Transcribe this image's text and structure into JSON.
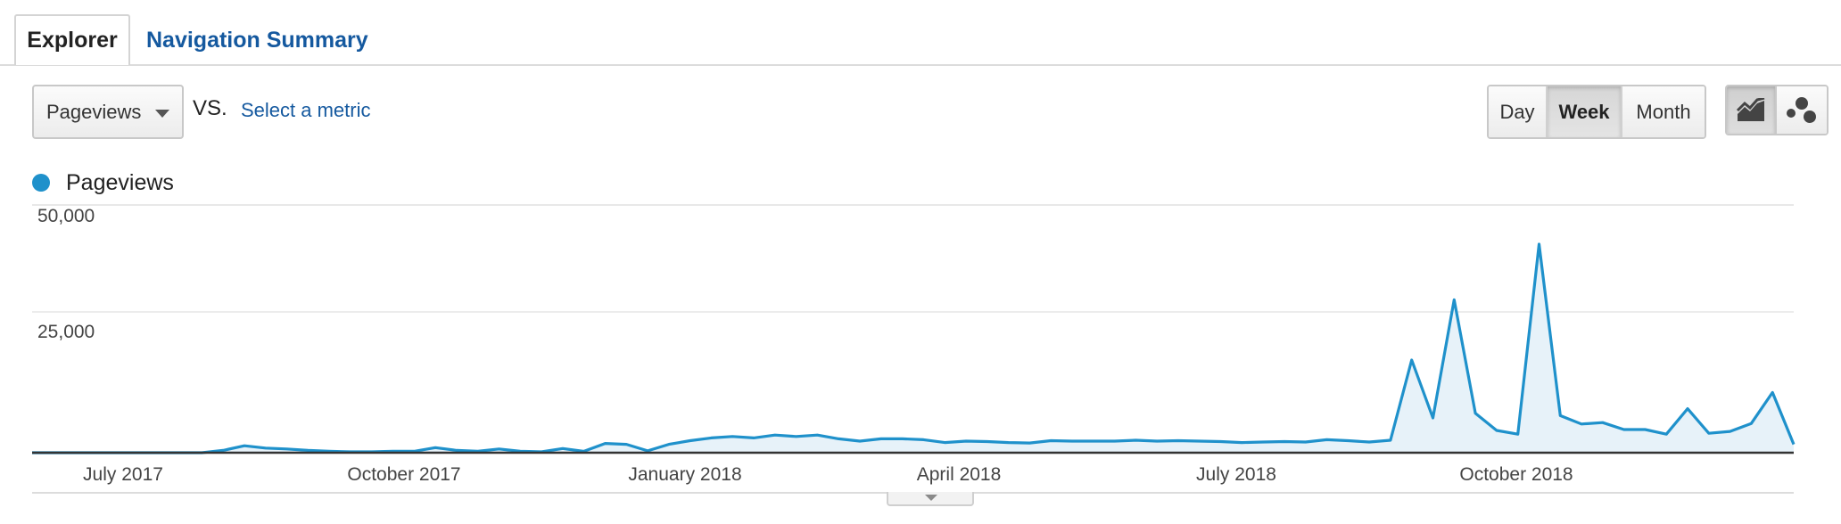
{
  "tabs": {
    "explorer": "Explorer",
    "navigation_summary": "Navigation Summary"
  },
  "controls": {
    "metric_selected": "Pageviews",
    "vs_label": "VS.",
    "select_metric": "Select a metric",
    "period": {
      "day": "Day",
      "week": "Week",
      "month": "Month",
      "selected": "Week"
    },
    "chart_type_selected": "line"
  },
  "legend": {
    "series_name": "Pageviews",
    "color": "#1f91cb"
  },
  "chart_data": {
    "type": "area",
    "title": "",
    "xlabel": "",
    "ylabel": "",
    "ylim": [
      0,
      50000
    ],
    "y_ticks": [
      "50,000",
      "25,000"
    ],
    "y_tick_values": [
      50000,
      25000
    ],
    "x_ticks": [
      "July 2017",
      "October 2017",
      "January 2018",
      "April 2018",
      "July 2018",
      "October 2018"
    ],
    "grid": true,
    "legend_position": "top-left",
    "series": [
      {
        "name": "Pageviews",
        "color": "#1f91cb",
        "values": [
          0,
          0,
          0,
          0,
          0,
          0,
          0,
          0,
          0,
          500,
          1500,
          1000,
          800,
          500,
          300,
          200,
          200,
          300,
          300,
          1100,
          500,
          300,
          800,
          300,
          200,
          900,
          300,
          2000,
          1800,
          400,
          1800,
          2600,
          3200,
          3500,
          3200,
          3800,
          3500,
          3800,
          3000,
          2500,
          3000,
          3000,
          2800,
          2200,
          2500,
          2400,
          2200,
          2100,
          2600,
          2500,
          2500,
          2500,
          2700,
          2500,
          2600,
          2500,
          2400,
          2200,
          2300,
          2400,
          2300,
          2800,
          2600,
          2300,
          2700,
          20000,
          7500,
          33000,
          8500,
          4800,
          4000,
          45000,
          8000,
          6200,
          6500,
          5000,
          5000,
          4000,
          9500,
          4200,
          4600,
          6300,
          13000,
          1800
        ]
      }
    ]
  }
}
